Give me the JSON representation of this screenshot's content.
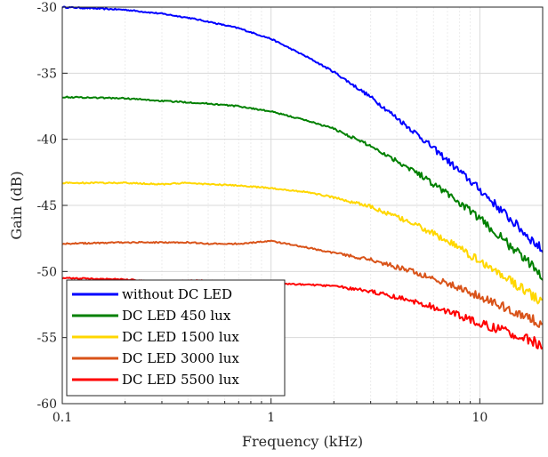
{
  "chart_data": {
    "type": "line",
    "xscale": "log",
    "xlabel": "Frequency (kHz)",
    "ylabel": "Gain (dB)",
    "xlim": [
      0.1,
      20
    ],
    "ylim": [
      -60,
      -30
    ],
    "xticks": [
      0.1,
      1,
      10
    ],
    "xtick_labels": [
      "0.1",
      "1",
      "10"
    ],
    "yticks": [
      -60,
      -55,
      -50,
      -45,
      -40,
      -35,
      -30
    ],
    "ytick_labels": [
      "-60",
      "-55",
      "-50",
      "-45",
      "-40",
      "-35",
      "-30"
    ],
    "grid": true,
    "legend_position": "bottom-left",
    "series": [
      {
        "name": "without DC LED",
        "color": "#0000ff",
        "x": [
          0.1,
          0.2,
          0.3,
          0.4,
          0.5,
          0.7,
          1,
          1.5,
          2,
          3,
          5,
          7,
          10,
          15,
          20
        ],
        "y": [
          -30.0,
          -30.2,
          -30.5,
          -30.8,
          -31.1,
          -31.6,
          -32.4,
          -33.8,
          -34.9,
          -36.8,
          -39.6,
          -41.6,
          -43.8,
          -46.5,
          -48.4
        ]
      },
      {
        "name": "DC LED 450 lux",
        "color": "#008000",
        "x": [
          0.1,
          0.2,
          0.3,
          0.4,
          0.5,
          0.7,
          1,
          1.5,
          2,
          3,
          5,
          7,
          10,
          15,
          20
        ],
        "y": [
          -36.8,
          -36.9,
          -37.1,
          -37.2,
          -37.3,
          -37.5,
          -37.9,
          -38.6,
          -39.2,
          -40.5,
          -42.5,
          -44.1,
          -46.0,
          -48.5,
          -50.3
        ]
      },
      {
        "name": "DC LED 1500 lux",
        "color": "#ffd700",
        "x": [
          0.1,
          0.2,
          0.3,
          0.4,
          0.5,
          0.7,
          1,
          1.5,
          2,
          3,
          5,
          7,
          10,
          15,
          20
        ],
        "y": [
          -43.3,
          -43.3,
          -43.4,
          -43.3,
          -43.4,
          -43.5,
          -43.7,
          -44.0,
          -44.4,
          -45.1,
          -46.5,
          -47.7,
          -49.2,
          -51.0,
          -52.4
        ]
      },
      {
        "name": "DC LED 3000 lux",
        "color": "#d95319",
        "x": [
          0.1,
          0.2,
          0.3,
          0.4,
          0.5,
          0.7,
          1,
          1.5,
          2,
          3,
          5,
          7,
          10,
          15,
          20
        ],
        "y": [
          -47.9,
          -47.8,
          -47.8,
          -47.8,
          -47.9,
          -47.9,
          -47.7,
          -48.2,
          -48.6,
          -49.1,
          -50.1,
          -50.9,
          -51.9,
          -53.1,
          -54.0
        ]
      },
      {
        "name": "DC LED 5500 lux",
        "color": "#ff0000",
        "x": [
          0.1,
          0.2,
          0.3,
          0.4,
          0.5,
          0.7,
          1,
          1.5,
          2,
          3,
          5,
          7,
          10,
          15,
          20
        ],
        "y": [
          -50.5,
          -50.6,
          -50.8,
          -50.7,
          -50.7,
          -50.8,
          -50.9,
          -51.0,
          -51.1,
          -51.5,
          -52.3,
          -53.0,
          -53.9,
          -54.8,
          -55.6
        ]
      }
    ]
  }
}
